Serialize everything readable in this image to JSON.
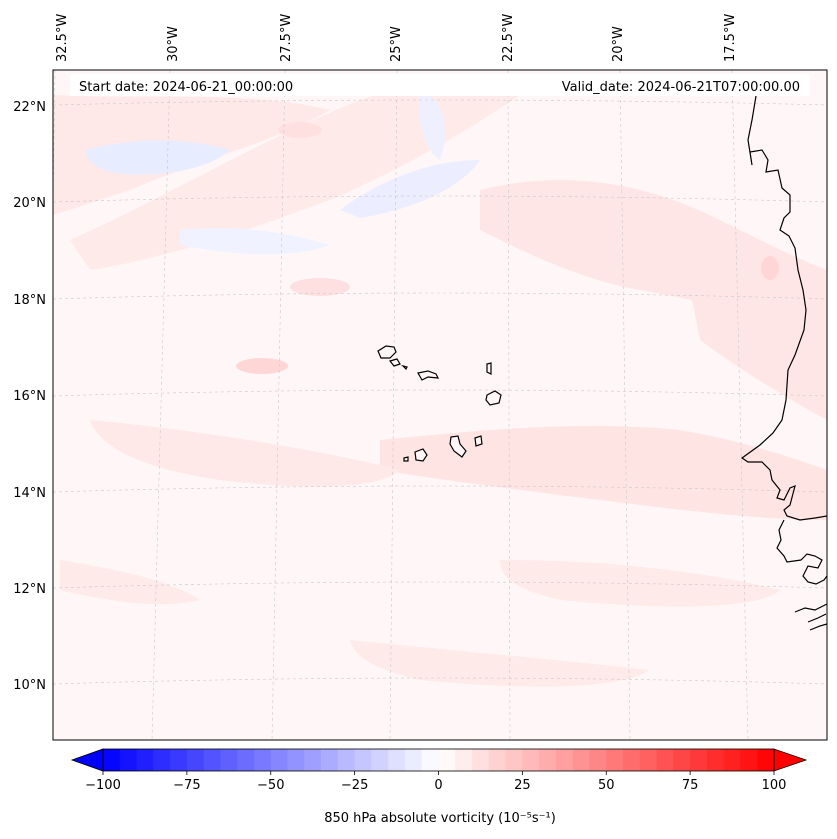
{
  "header": {
    "start_date": "Start date: 2024-06-21_00:00:00",
    "valid_date": "Valid_date: 2024-06-21T07:00:00.00"
  },
  "lon_labels": [
    "32.5°W",
    "30°W",
    "27.5°W",
    "25°W",
    "22.5°W",
    "20°W",
    "17.5°W"
  ],
  "lat_labels": [
    "22°N",
    "20°N",
    "18°N",
    "16°N",
    "14°N",
    "12°N",
    "10°N"
  ],
  "colorbar": {
    "label": "850 hPa absolute vorticity (10⁻⁵s⁻¹)",
    "min": -100,
    "max": 100,
    "levels": 41,
    "ticks": [
      "−100",
      "−75",
      "−50",
      "−25",
      "0",
      "25",
      "50",
      "75",
      "100"
    ],
    "neg_color": "#0000ff",
    "pos_color": "#ff0000"
  },
  "colors": {
    "background": "#fff7f7",
    "light_red": "#ffe6e6",
    "light_blue": "#eef0ff",
    "coastline": "#000000",
    "grid": "#cccccc"
  }
}
